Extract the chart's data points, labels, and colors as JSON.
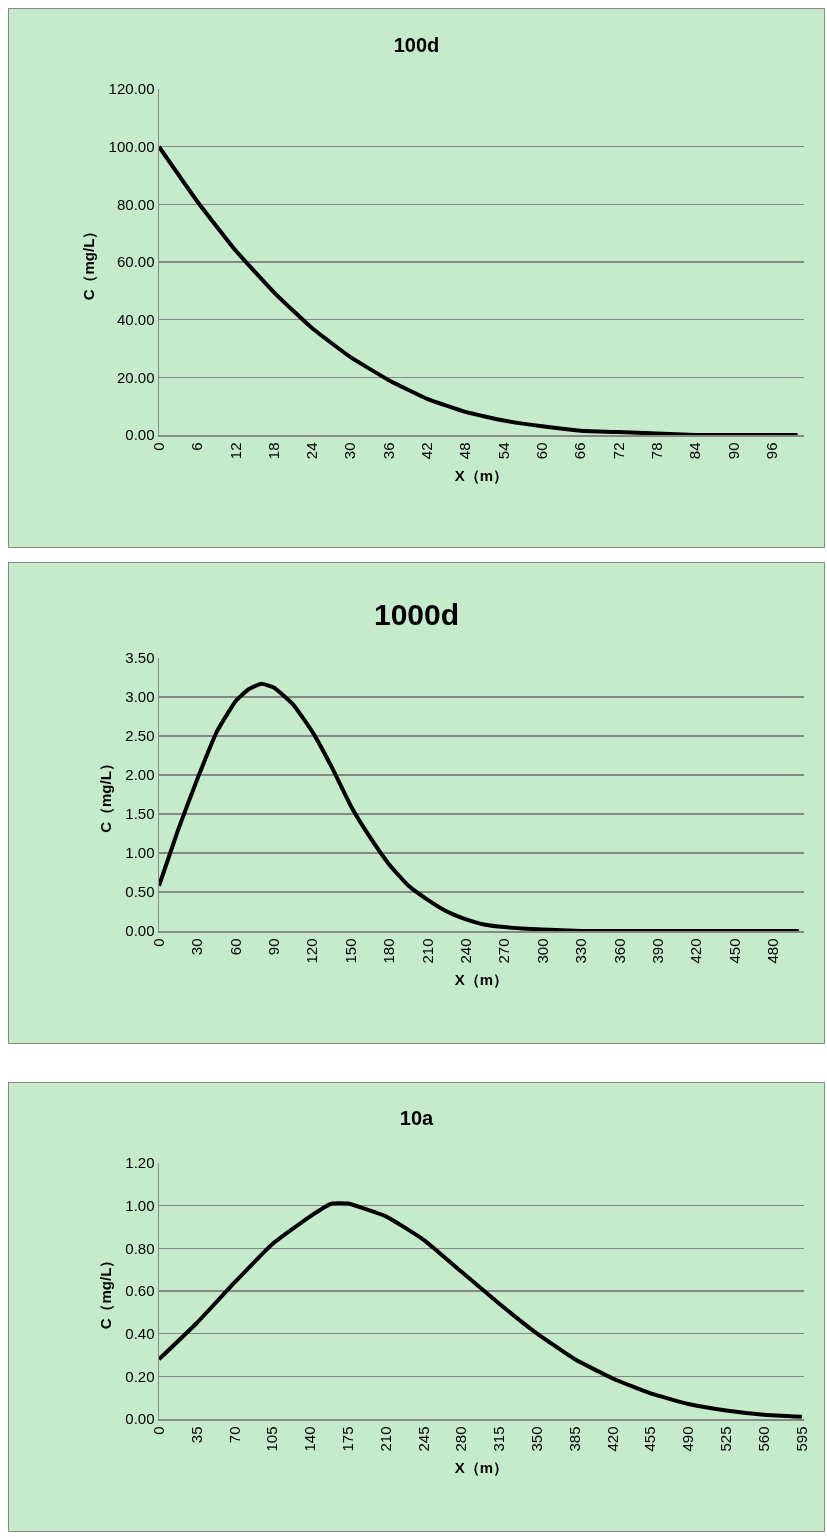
{
  "chart_data": [
    {
      "type": "line",
      "title": "100d",
      "xlabel": "X（m）",
      "ylabel": "C（mg/L）",
      "grid": "y",
      "marker": "none",
      "line_style": "solid",
      "x": [
        0,
        6,
        12,
        18,
        24,
        30,
        36,
        42,
        48,
        54,
        60,
        66,
        72,
        78,
        84,
        90,
        96,
        100
      ],
      "series": [
        {
          "color": "#000000",
          "values": [
            100,
            81,
            64,
            49.5,
            37,
            27,
            19,
            12.5,
            8,
            5,
            3,
            1.5,
            1,
            0.5,
            0,
            0,
            0,
            0
          ]
        }
      ],
      "xlim": [
        0,
        101
      ],
      "xticks": [
        0,
        6,
        12,
        18,
        24,
        30,
        36,
        42,
        48,
        54,
        60,
        66,
        72,
        78,
        84,
        90,
        96
      ],
      "ylim": [
        0,
        120
      ],
      "yticks": [
        {
          "value": 0,
          "label": "0.00"
        },
        {
          "value": 20,
          "label": "20.00"
        },
        {
          "value": 40,
          "label": "40.00"
        },
        {
          "value": 60,
          "label": "60.00"
        },
        {
          "value": 80,
          "label": "80.00"
        },
        {
          "value": 100,
          "label": "100.00"
        },
        {
          "value": 120,
          "label": "120.00"
        }
      ]
    },
    {
      "type": "line",
      "title": "1000d",
      "xlabel": "X（m）",
      "ylabel": "C（mg/L）",
      "grid": "y",
      "marker": "none",
      "line_style": "solid",
      "x": [
        0,
        15,
        30,
        45,
        60,
        70,
        80,
        90,
        105,
        120,
        135,
        150,
        165,
        180,
        195,
        210,
        225,
        240,
        255,
        270,
        300,
        330,
        360,
        400,
        450,
        500
      ],
      "series": [
        {
          "color": "#000000",
          "values": [
            0.58,
            1.3,
            1.95,
            2.55,
            2.95,
            3.1,
            3.17,
            3.12,
            2.9,
            2.55,
            2.1,
            1.6,
            1.2,
            0.85,
            0.58,
            0.4,
            0.25,
            0.15,
            0.08,
            0.05,
            0.02,
            0,
            0,
            0,
            0,
            0
          ]
        }
      ],
      "xlim": [
        0,
        504
      ],
      "xticks": [
        0,
        30,
        60,
        90,
        120,
        150,
        180,
        210,
        240,
        270,
        300,
        330,
        360,
        390,
        420,
        450,
        480
      ],
      "ylim": [
        0,
        3.5
      ],
      "yticks": [
        {
          "value": 0,
          "label": "0.00"
        },
        {
          "value": 0.5,
          "label": "0.50"
        },
        {
          "value": 1,
          "label": "1.00"
        },
        {
          "value": 1.5,
          "label": "1.50"
        },
        {
          "value": 2,
          "label": "2.00"
        },
        {
          "value": 2.5,
          "label": "2.50"
        },
        {
          "value": 3,
          "label": "3.00"
        },
        {
          "value": 3.5,
          "label": "3.50"
        }
      ]
    },
    {
      "type": "line",
      "title": "10a",
      "xlabel": "X（m）",
      "ylabel": "C（mg/L）",
      "grid": "y",
      "marker": "none",
      "line_style": "solid",
      "x": [
        0,
        35,
        70,
        105,
        140,
        160,
        175,
        210,
        245,
        280,
        315,
        350,
        385,
        420,
        455,
        490,
        525,
        560,
        595
      ],
      "series": [
        {
          "color": "#000000",
          "values": [
            0.28,
            0.45,
            0.64,
            0.82,
            0.95,
            1.01,
            1.01,
            0.95,
            0.84,
            0.69,
            0.54,
            0.4,
            0.28,
            0.19,
            0.12,
            0.07,
            0.04,
            0.02,
            0.01
          ]
        }
      ],
      "xlim": [
        0,
        597
      ],
      "xticks": [
        0,
        35,
        70,
        105,
        140,
        175,
        210,
        245,
        280,
        315,
        350,
        385,
        420,
        455,
        490,
        525,
        560,
        595
      ],
      "ylim": [
        0,
        1.2
      ],
      "yticks": [
        {
          "value": 0,
          "label": "0.00"
        },
        {
          "value": 0.2,
          "label": "0.20"
        },
        {
          "value": 0.4,
          "label": "0.40"
        },
        {
          "value": 0.6,
          "label": "0.60"
        },
        {
          "value": 0.8,
          "label": "0.80"
        },
        {
          "value": 1,
          "label": "1.00"
        },
        {
          "value": 1.2,
          "label": "1.20"
        }
      ]
    }
  ]
}
